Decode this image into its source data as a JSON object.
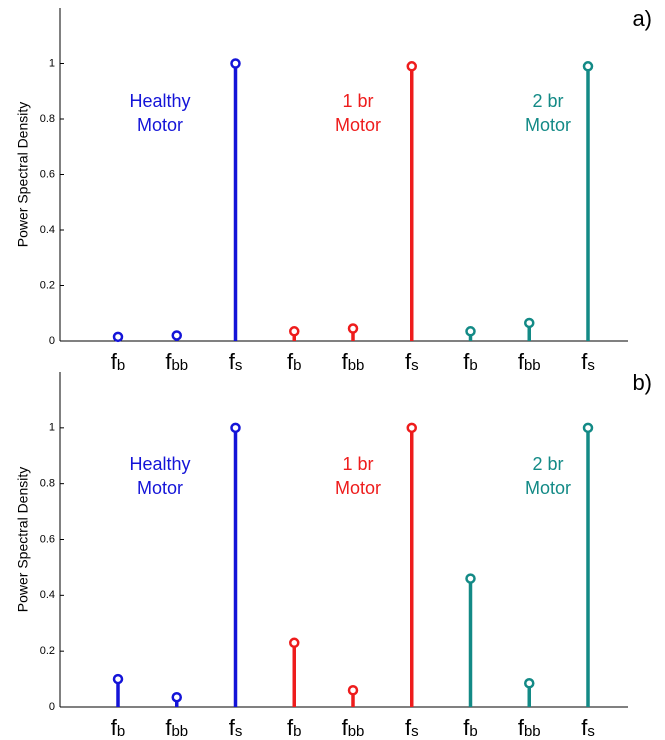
{
  "chart_data": [
    {
      "type": "stem",
      "panel_label": "a)",
      "ylabel": "Power Spectral Density",
      "categories": [
        "fb",
        "fbb",
        "fs",
        "fb",
        "fbb",
        "fs",
        "fb",
        "fbb",
        "fs"
      ],
      "ylim": [
        0,
        1.2
      ],
      "yticks": [
        0,
        0.2,
        0.4,
        0.6,
        0.8,
        1
      ],
      "grid": false,
      "series": [
        {
          "name": "Healthy\nMotor",
          "color": "#1414d8",
          "values": [
            0.015,
            0.02,
            1.0,
            null,
            null,
            null,
            null,
            null,
            null
          ]
        },
        {
          "name": "1 br\nMotor",
          "color": "#ee1c1c",
          "values": [
            null,
            null,
            null,
            0.035,
            0.045,
            0.99,
            null,
            null,
            null
          ]
        },
        {
          "name": "2 br\nMotor",
          "color": "#138a86",
          "values": [
            null,
            null,
            null,
            null,
            null,
            null,
            0.035,
            0.065,
            0.99
          ]
        }
      ]
    },
    {
      "type": "stem",
      "panel_label": "b)",
      "ylabel": "Power Spectral Density",
      "categories": [
        "fb",
        "fbb",
        "fs",
        "fb",
        "fbb",
        "fs",
        "fb",
        "fbb",
        "fs"
      ],
      "ylim": [
        0,
        1.2
      ],
      "yticks": [
        0,
        0.2,
        0.4,
        0.6,
        0.8,
        1
      ],
      "grid": false,
      "series": [
        {
          "name": "Healthy\nMotor",
          "color": "#1414d8",
          "values": [
            0.1,
            0.035,
            1.0,
            null,
            null,
            null,
            null,
            null,
            null
          ]
        },
        {
          "name": "1 br\nMotor",
          "color": "#ee1c1c",
          "values": [
            null,
            null,
            null,
            0.23,
            0.06,
            1.0,
            null,
            null,
            null
          ]
        },
        {
          "name": "2 br\nMotor",
          "color": "#138a86",
          "values": [
            null,
            null,
            null,
            null,
            null,
            null,
            0.46,
            0.085,
            1.0
          ]
        }
      ]
    }
  ]
}
